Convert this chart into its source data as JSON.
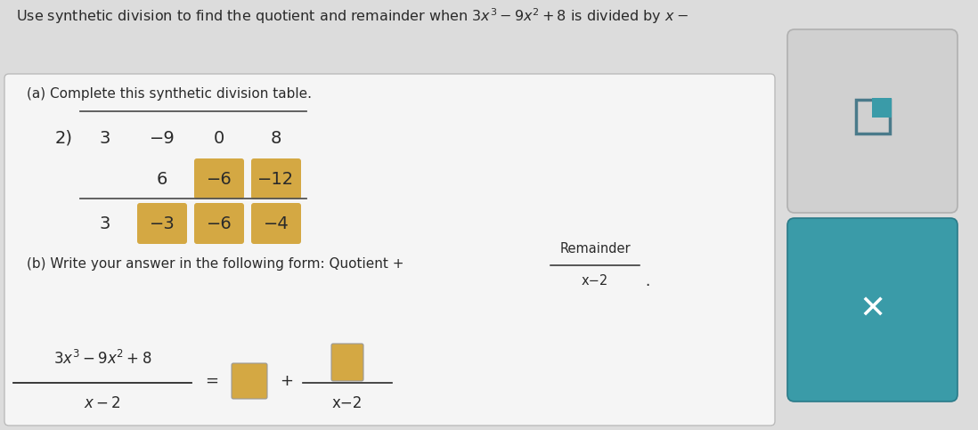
{
  "bg_color": "#dcdcdc",
  "main_panel_color": "#f5f5f5",
  "main_panel_border": "#bbbbbb",
  "highlight_yellow": "#d4a843",
  "teal_button": "#3a9ba8",
  "gray_button": "#d0d0d0",
  "text_color": "#2a2a2a",
  "synth_divisor": "2)",
  "synth_row1": [
    "3",
    "−9",
    "0",
    "8"
  ],
  "synth_row2": [
    "6",
    "−6",
    "−12"
  ],
  "synth_row3": [
    "3",
    "−3",
    "−6",
    "−4"
  ],
  "part_a_label": "(a) Complete this synthetic division table.",
  "part_b_label": "(b) Write your answer in the following form: Quotient +",
  "remainder_label": "Remainder",
  "denominator_label": "x−2",
  "formula_denom": "x−2"
}
